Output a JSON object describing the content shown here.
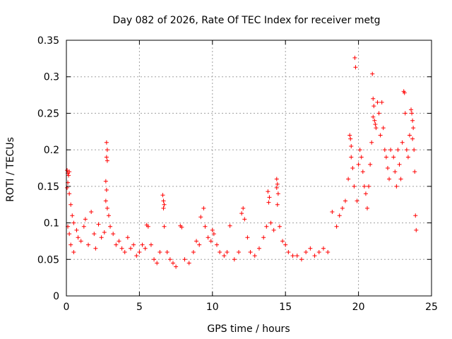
{
  "chart_data": {
    "type": "scatter",
    "title": "Day 082 of 2026, Rate Of TEC Index for receiver metg",
    "xlabel": "GPS time / hours",
    "ylabel": "ROTI / TECUs",
    "xlim": [
      0,
      25
    ],
    "ylim": [
      0,
      0.35
    ],
    "xticks": [
      0,
      5,
      10,
      15,
      20,
      25
    ],
    "xtick_labels": [
      "0",
      "5",
      "10",
      "15",
      "20",
      "25"
    ],
    "yticks": [
      0,
      0.05,
      0.1,
      0.15,
      0.2,
      0.25,
      0.3,
      0.35
    ],
    "ytick_labels": [
      "0",
      "0.05",
      "0.1",
      "0.15",
      "0.2",
      "0.25",
      "0.3",
      "0.35"
    ],
    "grid": true,
    "marker": "+",
    "color": "#ff0000",
    "series": [
      {
        "points": [
          [
            0.05,
            0.172
          ],
          [
            0.1,
            0.168
          ],
          [
            0.15,
            0.165
          ],
          [
            0.2,
            0.17
          ],
          [
            0.1,
            0.155
          ],
          [
            0.05,
            0.148
          ],
          [
            0.2,
            0.14
          ],
          [
            0.3,
            0.125
          ],
          [
            0.4,
            0.11
          ],
          [
            0.5,
            0.1
          ],
          [
            0.1,
            0.095
          ],
          [
            0.2,
            0.085
          ],
          [
            0.3,
            0.07
          ],
          [
            0.5,
            0.06
          ],
          [
            0.7,
            0.09
          ],
          [
            0.8,
            0.08
          ],
          [
            1.0,
            0.075
          ],
          [
            1.2,
            0.095
          ],
          [
            1.3,
            0.105
          ],
          [
            1.5,
            0.07
          ],
          [
            1.7,
            0.115
          ],
          [
            1.9,
            0.085
          ],
          [
            2.0,
            0.065
          ],
          [
            2.2,
            0.098
          ],
          [
            2.4,
            0.08
          ],
          [
            2.6,
            0.087
          ],
          [
            2.75,
            0.21
          ],
          [
            2.8,
            0.2
          ],
          [
            2.75,
            0.19
          ],
          [
            2.8,
            0.185
          ],
          [
            2.7,
            0.157
          ],
          [
            2.75,
            0.145
          ],
          [
            2.7,
            0.13
          ],
          [
            2.8,
            0.12
          ],
          [
            2.9,
            0.11
          ],
          [
            3.0,
            0.095
          ],
          [
            3.2,
            0.085
          ],
          [
            3.4,
            0.07
          ],
          [
            3.6,
            0.075
          ],
          [
            3.8,
            0.065
          ],
          [
            4.0,
            0.06
          ],
          [
            4.2,
            0.08
          ],
          [
            4.4,
            0.065
          ],
          [
            4.6,
            0.07
          ],
          [
            4.8,
            0.055
          ],
          [
            5.0,
            0.06
          ],
          [
            5.2,
            0.07
          ],
          [
            5.4,
            0.065
          ],
          [
            5.5,
            0.097
          ],
          [
            5.6,
            0.095
          ],
          [
            5.8,
            0.07
          ],
          [
            6.0,
            0.05
          ],
          [
            6.2,
            0.045
          ],
          [
            6.4,
            0.06
          ],
          [
            6.6,
            0.138
          ],
          [
            6.65,
            0.13
          ],
          [
            6.7,
            0.125
          ],
          [
            6.65,
            0.12
          ],
          [
            6.7,
            0.095
          ],
          [
            6.9,
            0.06
          ],
          [
            7.1,
            0.05
          ],
          [
            7.3,
            0.045
          ],
          [
            7.5,
            0.04
          ],
          [
            7.8,
            0.096
          ],
          [
            7.9,
            0.094
          ],
          [
            8.1,
            0.05
          ],
          [
            8.4,
            0.045
          ],
          [
            8.7,
            0.06
          ],
          [
            8.9,
            0.075
          ],
          [
            9.1,
            0.07
          ],
          [
            9.2,
            0.108
          ],
          [
            9.4,
            0.12
          ],
          [
            9.5,
            0.095
          ],
          [
            9.7,
            0.08
          ],
          [
            9.9,
            0.075
          ],
          [
            10.0,
            0.09
          ],
          [
            10.1,
            0.085
          ],
          [
            10.3,
            0.07
          ],
          [
            10.5,
            0.06
          ],
          [
            10.8,
            0.055
          ],
          [
            11.0,
            0.06
          ],
          [
            11.2,
            0.096
          ],
          [
            11.5,
            0.05
          ],
          [
            11.8,
            0.06
          ],
          [
            12.0,
            0.113
          ],
          [
            12.1,
            0.12
          ],
          [
            12.2,
            0.105
          ],
          [
            12.4,
            0.08
          ],
          [
            12.6,
            0.06
          ],
          [
            12.9,
            0.055
          ],
          [
            13.2,
            0.065
          ],
          [
            13.5,
            0.08
          ],
          [
            13.7,
            0.095
          ],
          [
            13.8,
            0.143
          ],
          [
            13.9,
            0.135
          ],
          [
            13.85,
            0.128
          ],
          [
            14.0,
            0.1
          ],
          [
            14.2,
            0.09
          ],
          [
            14.4,
            0.16
          ],
          [
            14.45,
            0.153
          ],
          [
            14.4,
            0.148
          ],
          [
            14.5,
            0.14
          ],
          [
            14.45,
            0.125
          ],
          [
            14.6,
            0.095
          ],
          [
            14.8,
            0.075
          ],
          [
            15.0,
            0.07
          ],
          [
            15.2,
            0.06
          ],
          [
            15.5,
            0.055
          ],
          [
            15.8,
            0.055
          ],
          [
            16.1,
            0.05
          ],
          [
            16.4,
            0.06
          ],
          [
            16.7,
            0.065
          ],
          [
            17.0,
            0.055
          ],
          [
            17.3,
            0.06
          ],
          [
            17.6,
            0.065
          ],
          [
            17.9,
            0.06
          ],
          [
            18.2,
            0.115
          ],
          [
            18.5,
            0.095
          ],
          [
            18.7,
            0.11
          ],
          [
            18.9,
            0.12
          ],
          [
            19.1,
            0.13
          ],
          [
            19.3,
            0.16
          ],
          [
            19.4,
            0.22
          ],
          [
            19.45,
            0.215
          ],
          [
            19.5,
            0.205
          ],
          [
            19.5,
            0.19
          ],
          [
            19.6,
            0.175
          ],
          [
            19.7,
            0.15
          ],
          [
            19.75,
            0.326
          ],
          [
            19.8,
            0.313
          ],
          [
            19.9,
            0.13
          ],
          [
            20.0,
            0.18
          ],
          [
            20.1,
            0.2
          ],
          [
            20.2,
            0.19
          ],
          [
            20.3,
            0.17
          ],
          [
            20.4,
            0.15
          ],
          [
            20.5,
            0.14
          ],
          [
            20.6,
            0.12
          ],
          [
            20.7,
            0.15
          ],
          [
            20.8,
            0.18
          ],
          [
            20.9,
            0.21
          ],
          [
            20.95,
            0.304
          ],
          [
            21.0,
            0.27
          ],
          [
            21.05,
            0.26
          ],
          [
            21.0,
            0.245
          ],
          [
            21.1,
            0.24
          ],
          [
            21.15,
            0.235
          ],
          [
            21.2,
            0.23
          ],
          [
            21.3,
            0.265
          ],
          [
            21.4,
            0.25
          ],
          [
            21.5,
            0.22
          ],
          [
            21.6,
            0.265
          ],
          [
            21.7,
            0.23
          ],
          [
            21.8,
            0.2
          ],
          [
            21.9,
            0.19
          ],
          [
            22.0,
            0.175
          ],
          [
            22.1,
            0.16
          ],
          [
            22.2,
            0.2
          ],
          [
            22.4,
            0.19
          ],
          [
            22.5,
            0.17
          ],
          [
            22.6,
            0.15
          ],
          [
            22.7,
            0.2
          ],
          [
            22.8,
            0.18
          ],
          [
            22.9,
            0.16
          ],
          [
            23.0,
            0.21
          ],
          [
            23.1,
            0.28
          ],
          [
            23.15,
            0.278
          ],
          [
            23.2,
            0.25
          ],
          [
            23.3,
            0.2
          ],
          [
            23.4,
            0.19
          ],
          [
            23.5,
            0.22
          ],
          [
            23.6,
            0.255
          ],
          [
            23.65,
            0.25
          ],
          [
            23.7,
            0.24
          ],
          [
            23.75,
            0.23
          ],
          [
            23.7,
            0.215
          ],
          [
            23.8,
            0.2
          ],
          [
            23.85,
            0.17
          ],
          [
            23.9,
            0.11
          ],
          [
            23.95,
            0.09
          ]
        ]
      }
    ]
  }
}
